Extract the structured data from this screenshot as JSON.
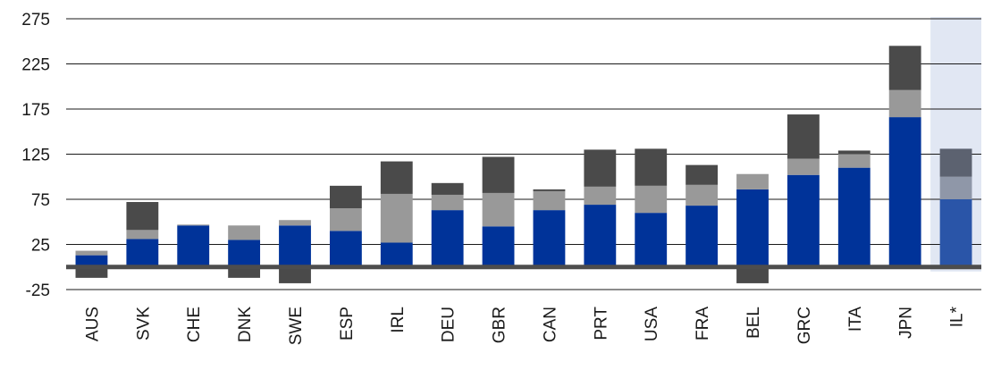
{
  "chart_data": {
    "type": "bar",
    "stacked": true,
    "title": "",
    "xlabel": "",
    "ylabel": "",
    "ylim": [
      -25,
      275
    ],
    "yticks": [
      "275",
      "225",
      "175",
      "125",
      "75",
      "25",
      "-25"
    ],
    "grid": true,
    "legend": "none",
    "categories": [
      "AUS",
      "SVK",
      "CHE",
      "DNK",
      "SWE",
      "ESP",
      "IRL",
      "DEU",
      "GBR",
      "CAN",
      "PRT",
      "USA",
      "FRA",
      "BEL",
      "GRC",
      "ITA",
      "JPN",
      "IL*"
    ],
    "highlighted_category": "IL*",
    "series": [
      {
        "values": [
          13,
          31,
          46,
          30,
          46,
          40,
          27,
          63,
          45,
          63,
          69,
          60,
          68,
          86,
          102,
          110,
          166,
          75
        ]
      },
      {
        "values": [
          5,
          10,
          1,
          16,
          6,
          25,
          54,
          17,
          37,
          21,
          20,
          30,
          23,
          17,
          18,
          15,
          30,
          25
        ]
      },
      {
        "values": [
          -12,
          31,
          0,
          -12,
          -18,
          25,
          36,
          13,
          40,
          2,
          41,
          41,
          22,
          -18,
          49,
          4,
          49,
          31
        ]
      }
    ],
    "colors": {
      "series": [
        "#003399",
        "#999999",
        "#4a4a4a"
      ],
      "series_highlight": [
        "#2a55a8",
        "#8f97a8",
        "#5c6270"
      ],
      "highlight_band": "#e1e7f3",
      "baseline": "#4d4d4d",
      "grid": "#1a1a1a"
    }
  }
}
